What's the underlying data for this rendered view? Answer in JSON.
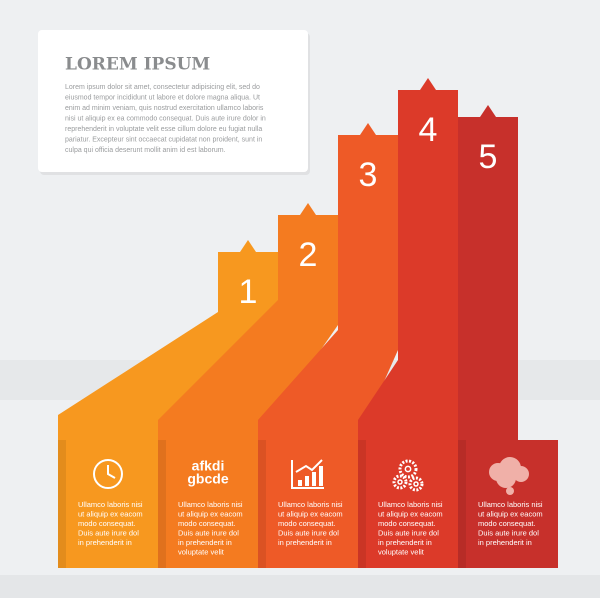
{
  "header": {
    "title": "LOREM IPSUM",
    "body": [
      "Lorem ipsum dolor sit amet, consectetur adipisicing elit, sed do",
      "eiusmod tempor incididunt ut labore et dolore magna aliqua. Ut",
      "enim ad minim veniam, quis nostrud exercitation ullamco laboris",
      "nisi ut aliquip ex ea commodo consequat. Duis aute irure dolor in",
      "reprehenderit in voluptate velit esse cillum dolore eu fugiat nulla",
      "pariatur. Excepteur sint occaecat cupidatat non proident, sunt in",
      "culpa qui officia deserunt mollit anim id est laborum."
    ]
  },
  "columns": [
    {
      "number": "1",
      "text": [
        "Ullamco laboris nisi",
        "ut aliquip  ex eacom",
        "modo consequat.",
        "Duis aute irure dol",
        "in prehenderit in"
      ]
    },
    {
      "number": "2",
      "icon_text": [
        "afkdi",
        "gbcde"
      ],
      "text": [
        "Ullamco laboris nisi",
        "ut aliquip  ex eacom",
        "modo consequat.",
        "Duis aute irure dol",
        "in prehenderit in",
        "voluptate velit"
      ]
    },
    {
      "number": "3",
      "text": [
        "Ullamco laboris nisi",
        "ut aliquip  ex eacom",
        "modo consequat.",
        "Duis aute irure dol",
        "in prehenderit in"
      ]
    },
    {
      "number": "4",
      "text": [
        "Ullamco laboris nisi",
        "ut aliquip  ex eacom",
        "modo consequat.",
        "Duis aute irure dol",
        "in prehenderit in",
        "voluptate velit"
      ]
    },
    {
      "number": "5",
      "text": [
        "Ullamco laboris nisi",
        "ut aliquip  ex eacom",
        "modo consequat.",
        "Duis aute irure dol",
        "in prehenderit in"
      ]
    }
  ]
}
